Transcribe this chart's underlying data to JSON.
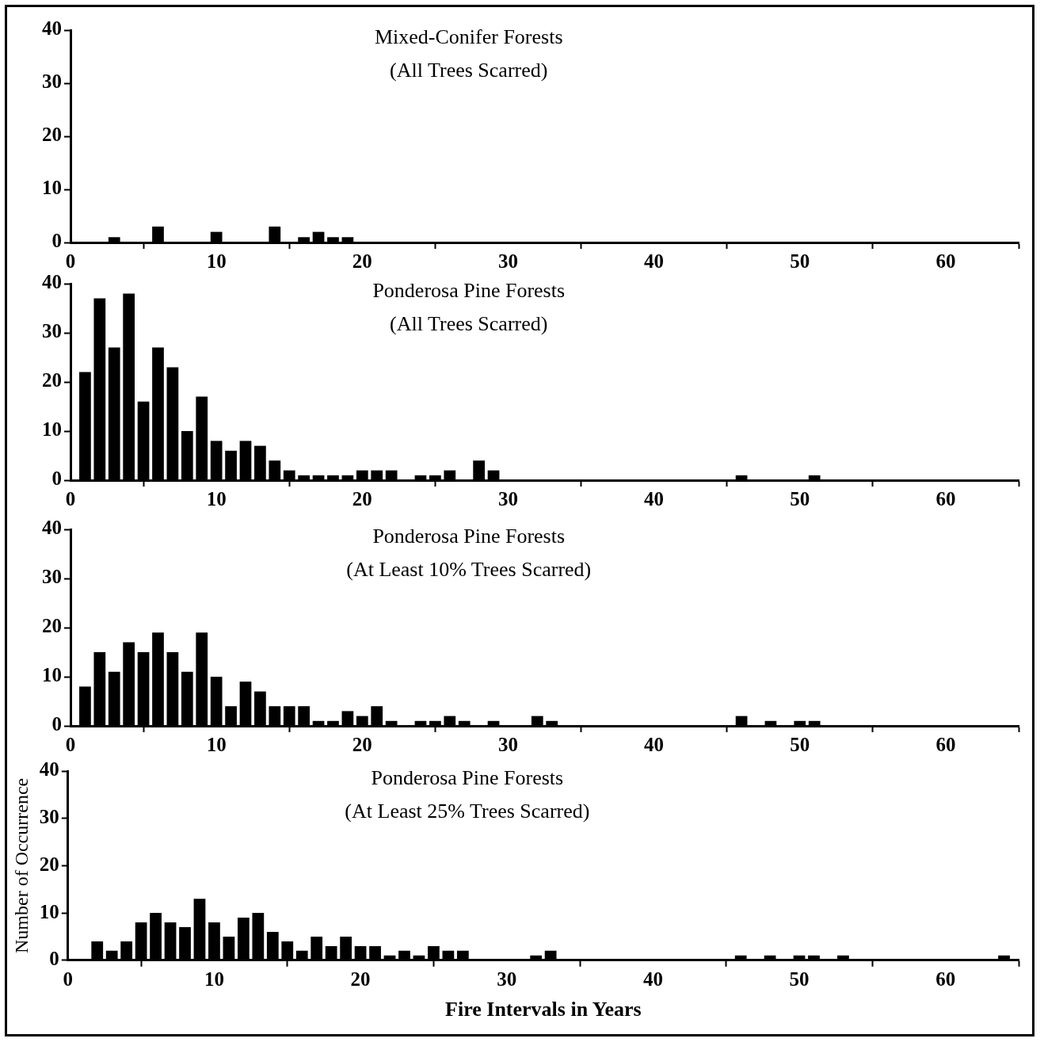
{
  "chart_data": [
    {
      "type": "bar",
      "title": "Mixed-Conifer Forests",
      "subtitle": "(All Trees Scarred)",
      "color": "#000000",
      "x": [
        3,
        6,
        10,
        14,
        16,
        17,
        18,
        19
      ],
      "values": [
        1,
        3,
        2,
        3,
        1,
        2,
        1,
        1
      ],
      "xlim": [
        0,
        65
      ],
      "xticks": [
        0,
        10,
        20,
        30,
        40,
        50,
        60
      ],
      "ylim": [
        0,
        40
      ],
      "yticks": [
        0,
        10,
        20,
        30,
        40
      ]
    },
    {
      "type": "bar",
      "title": "Ponderosa Pine Forests",
      "subtitle": "(All Trees Scarred)",
      "color": "#000000",
      "x": [
        1,
        2,
        3,
        4,
        5,
        6,
        7,
        8,
        9,
        10,
        11,
        12,
        13,
        14,
        15,
        16,
        17,
        18,
        19,
        20,
        21,
        22,
        24,
        25,
        26,
        28,
        29,
        46,
        51
      ],
      "values": [
        22,
        37,
        27,
        38,
        16,
        27,
        23,
        10,
        17,
        8,
        6,
        8,
        7,
        4,
        2,
        1,
        1,
        1,
        1,
        2,
        2,
        2,
        1,
        1,
        2,
        4,
        2,
        1,
        1
      ],
      "xlim": [
        0,
        65
      ],
      "xticks": [
        0,
        10,
        20,
        30,
        40,
        50,
        60
      ],
      "ylim": [
        0,
        40
      ],
      "yticks": [
        0,
        10,
        20,
        30,
        40
      ]
    },
    {
      "type": "bar",
      "title": "Ponderosa Pine Forests",
      "subtitle": "(At Least 10% Trees Scarred)",
      "color": "#000000",
      "x": [
        1,
        2,
        3,
        4,
        5,
        6,
        7,
        8,
        9,
        10,
        11,
        12,
        13,
        14,
        15,
        16,
        17,
        18,
        19,
        20,
        21,
        22,
        24,
        25,
        26,
        27,
        29,
        32,
        33,
        46,
        48,
        50,
        51
      ],
      "values": [
        8,
        15,
        11,
        17,
        15,
        19,
        15,
        11,
        19,
        10,
        4,
        9,
        7,
        4,
        4,
        4,
        1,
        1,
        3,
        2,
        4,
        1,
        1,
        1,
        2,
        1,
        1,
        2,
        1,
        2,
        1,
        1,
        1
      ],
      "xlim": [
        0,
        65
      ],
      "xticks": [
        0,
        10,
        20,
        30,
        40,
        50,
        60
      ],
      "ylim": [
        0,
        40
      ],
      "yticks": [
        0,
        10,
        20,
        30,
        40
      ]
    },
    {
      "type": "bar",
      "title": "Ponderosa Pine Forests",
      "subtitle": "(At Least 25% Trees Scarred)",
      "color": "#000000",
      "xlabel": "Fire Intervals in Years",
      "ylabel": "Number of Occurrence",
      "x": [
        2,
        3,
        4,
        5,
        6,
        7,
        8,
        9,
        10,
        11,
        12,
        13,
        14,
        15,
        16,
        17,
        18,
        19,
        20,
        21,
        22,
        23,
        24,
        25,
        26,
        27,
        32,
        33,
        46,
        48,
        50,
        51,
        53,
        64
      ],
      "values": [
        4,
        2,
        4,
        8,
        10,
        8,
        7,
        13,
        8,
        5,
        9,
        10,
        6,
        4,
        2,
        5,
        3,
        5,
        3,
        3,
        1,
        2,
        1,
        3,
        2,
        2,
        1,
        2,
        1,
        1,
        1,
        1,
        1,
        1
      ],
      "xlim": [
        0,
        65
      ],
      "xticks": [
        0,
        10,
        20,
        30,
        40,
        50,
        60
      ],
      "ylim": [
        0,
        40
      ],
      "yticks": [
        0,
        10,
        20,
        30,
        40
      ]
    }
  ]
}
